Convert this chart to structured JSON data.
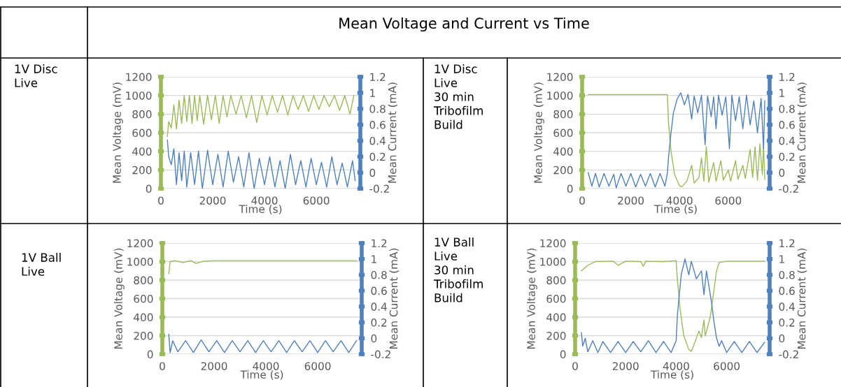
{
  "chart_data": [
    {
      "type": "line",
      "title": "1V Disc\nLive",
      "annotations": [
        "Mean Voltage and Current vs Time"
      ],
      "xlabel": "Time (s)",
      "ylabel": "Mean Voltage (mV)",
      "y2label": "Mean Current (mA)",
      "xlim": [
        0,
        7700
      ],
      "xticks": [
        0,
        2000,
        4000,
        6000
      ],
      "ylim": [
        0,
        1200
      ],
      "yticks": [
        0,
        200,
        400,
        600,
        800,
        1000,
        1200
      ],
      "y2lim": [
        -0.2,
        1.2
      ],
      "y2ticks": [
        -0.2,
        0,
        0.2,
        0.4,
        0.6,
        0.8,
        1,
        1.2
      ],
      "grid": "y",
      "series": [
        {
          "color": "#9bbb59",
          "x": [
            250,
            300,
            400,
            500,
            600,
            700,
            800,
            900,
            1000,
            1100,
            1200,
            1300,
            1400,
            1500,
            1650,
            1800,
            1950,
            2100,
            2250,
            2400,
            2550,
            2700,
            2900,
            3100,
            3300,
            3500,
            3700,
            3900,
            4100,
            4300,
            4500,
            4700,
            4900,
            5100,
            5300,
            5500,
            5700,
            5900,
            6100,
            6300,
            6500,
            6700,
            6900,
            7100,
            7300,
            7450
          ],
          "values": [
            560,
            720,
            650,
            900,
            640,
            950,
            700,
            1000,
            720,
            1000,
            700,
            1000,
            730,
            1000,
            690,
            1000,
            740,
            1000,
            700,
            1000,
            770,
            1000,
            800,
            1000,
            760,
            1000,
            710,
            1000,
            790,
            1000,
            820,
            1000,
            790,
            1000,
            850,
            1000,
            830,
            1000,
            850,
            1000,
            880,
            1000,
            840,
            1000,
            800,
            1000
          ]
        },
        {
          "color": "#4f81bd",
          "axis": "y2",
          "x": [
            250,
            300,
            400,
            500,
            600,
            700,
            800,
            900,
            1000,
            1150,
            1300,
            1450,
            1600,
            1800,
            2000,
            2200,
            2400,
            2600,
            2800,
            3000,
            3200,
            3400,
            3600,
            3800,
            4000,
            4200,
            4400,
            4600,
            4800,
            5000,
            5200,
            5400,
            5600,
            5800,
            6000,
            6200,
            6400,
            6600,
            6800,
            7000,
            7200,
            7400,
            7500
          ],
          "values": [
            0.41,
            0.2,
            0.1,
            0.3,
            -0.15,
            0.25,
            -0.1,
            0.27,
            -0.18,
            0.25,
            -0.15,
            0.27,
            -0.2,
            0.28,
            -0.15,
            0.23,
            -0.18,
            0.27,
            -0.12,
            0.2,
            -0.18,
            0.25,
            -0.2,
            0.18,
            -0.15,
            0.2,
            -0.18,
            0.15,
            -0.2,
            0.23,
            -0.15,
            0.15,
            -0.18,
            0.18,
            -0.15,
            0.13,
            -0.18,
            0.2,
            -0.15,
            0.12,
            -0.18,
            0.15,
            -0.1
          ]
        }
      ]
    },
    {
      "type": "line",
      "title": "1V Disc\nLive\n30 min\nTribofilm\nBuild",
      "xlabel": "Time (s)",
      "ylabel": "Mean Voltage (mV)",
      "y2label": "Mean Current (mA)",
      "xlim": [
        0,
        7700
      ],
      "xticks": [
        0,
        2000,
        4000,
        6000
      ],
      "ylim": [
        0,
        1200
      ],
      "yticks": [
        0,
        200,
        400,
        600,
        800,
        1000,
        1200
      ],
      "y2lim": [
        -0.2,
        1.2
      ],
      "y2ticks": [
        -0.2,
        0,
        0.2,
        0.4,
        0.6,
        0.8,
        1,
        1.2
      ],
      "grid": "y",
      "series": [
        {
          "color": "#9bbb59",
          "x": [
            250,
            3500,
            3550,
            3650,
            3800,
            4000,
            4100,
            4300,
            4500,
            4600,
            4800,
            4900,
            5000,
            5100,
            5200,
            5400,
            5500,
            5700,
            5800,
            6000,
            6100,
            6300,
            6400,
            6600,
            6700,
            6900,
            7000,
            7100,
            7200,
            7300,
            7400,
            7450,
            7500
          ],
          "values": [
            1010,
            1010,
            700,
            400,
            150,
            30,
            20,
            80,
            250,
            60,
            120,
            330,
            80,
            450,
            70,
            280,
            80,
            300,
            90,
            200,
            80,
            300,
            100,
            250,
            110,
            420,
            120,
            450,
            90,
            480,
            150,
            470,
            100
          ]
        },
        {
          "color": "#4f81bd",
          "axis": "y2",
          "x": [
            250,
            400,
            550,
            700,
            900,
            1100,
            1300,
            1400,
            1600,
            1800,
            2000,
            2200,
            2400,
            2600,
            2800,
            3000,
            3200,
            3400,
            3500,
            3550,
            3650,
            3750,
            3900,
            4050,
            4200,
            4350,
            4500,
            4600,
            4750,
            4900,
            5050,
            5150,
            5300,
            5400,
            5500,
            5600,
            5750,
            5900,
            6050,
            6150,
            6300,
            6450,
            6600,
            6750,
            6900,
            7050,
            7200,
            7350,
            7450,
            7500
          ],
          "values": [
            0.0,
            -0.17,
            -0.01,
            -0.18,
            -0.01,
            -0.17,
            -0.02,
            -0.19,
            -0.01,
            -0.17,
            -0.01,
            -0.18,
            -0.02,
            -0.17,
            -0.01,
            -0.18,
            -0.01,
            -0.17,
            -0.01,
            0.2,
            0.5,
            0.75,
            0.92,
            1.0,
            0.85,
            0.98,
            0.67,
            0.96,
            0.75,
            0.97,
            0.35,
            0.96,
            0.7,
            0.95,
            0.55,
            0.97,
            0.72,
            0.95,
            0.3,
            0.97,
            0.65,
            0.95,
            0.55,
            0.97,
            0.6,
            0.9,
            0.5,
            0.93,
            0.3,
            0.9
          ]
        }
      ]
    },
    {
      "type": "line",
      "title": "1V Ball\nLive",
      "xlabel": "Time (s)",
      "ylabel": "Mean Voltage (mV)",
      "y2label": "Mean Current (mA)",
      "xlim": [
        0,
        7700
      ],
      "xticks": [
        0,
        2000,
        4000,
        6000
      ],
      "ylim": [
        0,
        1200
      ],
      "yticks": [
        0,
        200,
        400,
        600,
        800,
        1000,
        1200
      ],
      "y2lim": [
        -0.2,
        1.2
      ],
      "y2ticks": [
        -0.2,
        0,
        0.2,
        0.4,
        0.6,
        0.8,
        1,
        1.2
      ],
      "grid": "y",
      "series": [
        {
          "color": "#9bbb59",
          "x": [
            250,
            300,
            500,
            800,
            1100,
            1300,
            1600,
            2000,
            3000,
            4000,
            5000,
            6000,
            7000,
            7500
          ],
          "values": [
            870,
            1000,
            1010,
            990,
            1010,
            980,
            1005,
            1010,
            1010,
            1010,
            1010,
            1010,
            1010,
            1010
          ]
        },
        {
          "color": "#4f81bd",
          "axis": "y2",
          "x": [
            250,
            300,
            400,
            600,
            900,
            1200,
            1500,
            1800,
            2100,
            2400,
            2700,
            3000,
            3300,
            3600,
            3900,
            4200,
            4500,
            4800,
            5100,
            5400,
            5700,
            6000,
            6300,
            6600,
            6900,
            7200,
            7500
          ],
          "values": [
            0.05,
            -0.18,
            -0.03,
            -0.17,
            -0.03,
            -0.18,
            -0.02,
            -0.17,
            -0.03,
            -0.18,
            -0.03,
            -0.17,
            -0.03,
            -0.18,
            -0.03,
            -0.17,
            -0.03,
            -0.18,
            -0.03,
            -0.17,
            -0.03,
            -0.18,
            -0.03,
            -0.17,
            -0.03,
            -0.18,
            -0.03
          ]
        }
      ]
    },
    {
      "type": "line",
      "title": "1V Ball\nLive\n30 min\nTribofilm\nBuild",
      "xlabel": "Time (s)",
      "ylabel": "Mean Voltage (mV)",
      "y2label": "Mean Current (mA)",
      "xlim": [
        0,
        7700
      ],
      "xticks": [
        0,
        2000,
        4000,
        6000
      ],
      "ylim": [
        0,
        1200
      ],
      "yticks": [
        0,
        200,
        400,
        600,
        800,
        1000,
        1200
      ],
      "y2lim": [
        -0.2,
        1.2
      ],
      "y2ticks": [
        -0.2,
        0,
        0.2,
        0.4,
        0.6,
        0.8,
        1,
        1.2
      ],
      "grid": "y",
      "series": [
        {
          "color": "#9bbb59",
          "x": [
            250,
            500,
            800,
            1500,
            1700,
            2000,
            2600,
            2700,
            2800,
            3500,
            4000,
            4050,
            4150,
            4300,
            4500,
            4600,
            4700,
            4900,
            5000,
            5100,
            5150,
            5250,
            5350,
            5450,
            5600,
            5700,
            6000,
            7500
          ],
          "values": [
            900,
            960,
            1000,
            1005,
            960,
            1005,
            1000,
            950,
            1005,
            1000,
            1010,
            800,
            500,
            200,
            50,
            30,
            100,
            250,
            180,
            370,
            200,
            300,
            400,
            600,
            900,
            990,
            1005,
            1005
          ]
        },
        {
          "color": "#4f81bd",
          "axis": "y2",
          "x": [
            250,
            300,
            400,
            500,
            700,
            900,
            1100,
            1400,
            1700,
            2000,
            2300,
            2600,
            2900,
            3200,
            3500,
            3800,
            4000,
            4050,
            4200,
            4350,
            4500,
            4600,
            4800,
            5000,
            5100,
            5200,
            5300,
            5400,
            5500,
            5600,
            5700,
            5800,
            6000,
            6300,
            6600,
            6900,
            7200,
            7500
          ],
          "values": [
            0.07,
            -0.1,
            0.0,
            -0.17,
            -0.03,
            -0.18,
            -0.04,
            -0.18,
            -0.04,
            -0.18,
            -0.04,
            -0.17,
            -0.03,
            -0.18,
            -0.04,
            -0.18,
            -0.03,
            0.3,
            0.8,
            1.0,
            0.8,
            0.97,
            0.75,
            0.85,
            0.55,
            0.85,
            0.65,
            0.45,
            0.2,
            0.0,
            -0.1,
            -0.03,
            -0.18,
            -0.04,
            -0.18,
            -0.04,
            -0.18,
            -0.05
          ]
        }
      ]
    }
  ]
}
